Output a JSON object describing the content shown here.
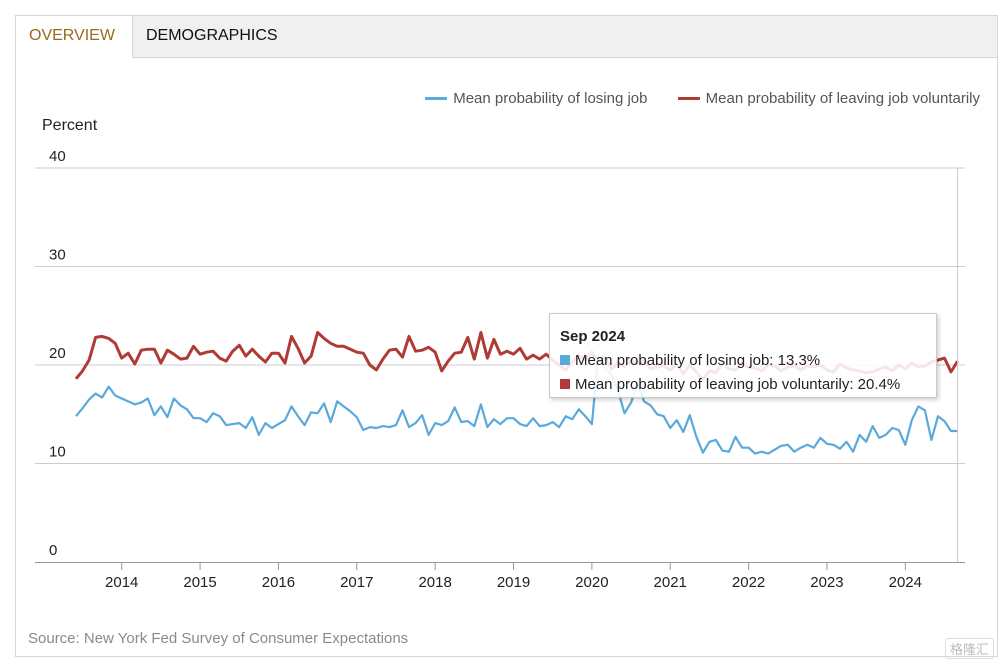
{
  "tabs": {
    "overview": "OVERVIEW",
    "demographics": "DEMOGRAPHICS"
  },
  "legend": {
    "losing": "Mean probability of losing job",
    "leaving": "Mean probability of leaving job voluntarily"
  },
  "axis": {
    "y_title": "Percent"
  },
  "tooltip": {
    "title": "Sep 2024",
    "losing_text": "Mean probability of losing job: 13.3%",
    "leaving_text": "Mean probability of leaving job voluntarily: 20.4%"
  },
  "source": "Source: New York Fed Survey of Consumer Expectations",
  "watermark": "格隆汇",
  "colors": {
    "losing": "#5aa9dc",
    "leaving": "#b03a36",
    "grid": "#cccccc",
    "active_tab": "#9a6a1c"
  },
  "chart_data": {
    "type": "line",
    "ylabel": "Percent",
    "ylim": [
      0,
      40
    ],
    "yticks": [
      0,
      10,
      20,
      30,
      40
    ],
    "xticks": [
      "2014",
      "2015",
      "2016",
      "2017",
      "2018",
      "2019",
      "2020",
      "2021",
      "2022",
      "2023",
      "2024"
    ],
    "x_start": "2013-06",
    "x_end": "2024-09",
    "grid": true,
    "legend_position": "top-right",
    "series": [
      {
        "name": "Mean probability of losing job",
        "values": [
          14.8,
          15.6,
          16.5,
          17.1,
          16.7,
          17.8,
          16.9,
          16.6,
          16.3,
          16.0,
          16.2,
          16.6,
          14.9,
          15.8,
          14.7,
          16.6,
          15.9,
          15.5,
          14.6,
          14.6,
          14.2,
          15.1,
          14.8,
          13.9,
          14.0,
          14.1,
          13.6,
          14.7,
          12.9,
          14.1,
          13.6,
          14.0,
          14.4,
          15.8,
          14.8,
          13.9,
          15.2,
          15.1,
          16.1,
          14.2,
          16.3,
          15.8,
          15.3,
          14.7,
          13.4,
          13.7,
          13.6,
          13.8,
          13.7,
          13.9,
          15.4,
          13.7,
          14.1,
          14.9,
          12.9,
          14.1,
          13.9,
          14.3,
          15.7,
          14.2,
          14.3,
          13.8,
          16.0,
          13.7,
          14.5,
          14.0,
          14.6,
          14.6,
          14.0,
          13.8,
          14.6,
          13.8,
          13.9,
          14.2,
          13.7,
          14.8,
          14.5,
          15.5,
          14.8,
          14.0,
          21.1,
          19.7,
          19.0,
          17.4,
          15.1,
          16.2,
          18.1,
          16.3,
          15.9,
          15.0,
          14.8,
          13.6,
          14.4,
          13.2,
          14.9,
          12.7,
          11.1,
          12.2,
          12.4,
          11.3,
          11.2,
          12.7,
          11.6,
          11.6,
          11.0,
          11.2,
          11.0,
          11.4,
          11.8,
          11.9,
          11.2,
          11.6,
          11.9,
          11.6,
          12.6,
          12.0,
          11.9,
          11.5,
          12.2,
          11.2,
          12.9,
          12.2,
          13.8,
          12.6,
          12.9,
          13.6,
          13.4,
          11.9,
          14.4,
          15.8,
          15.4,
          12.4,
          14.8,
          14.3,
          13.3,
          13.3
        ],
        "color": "#5aa9dc"
      },
      {
        "name": "Mean probability of leaving job voluntarily",
        "values": [
          18.6,
          19.4,
          20.5,
          22.8,
          22.9,
          22.7,
          22.2,
          20.7,
          21.2,
          20.1,
          21.5,
          21.6,
          21.6,
          20.2,
          21.5,
          21.1,
          20.6,
          20.7,
          21.9,
          21.1,
          21.3,
          21.4,
          20.7,
          20.4,
          21.4,
          22.0,
          20.9,
          21.6,
          20.9,
          20.3,
          21.2,
          21.2,
          20.2,
          22.9,
          21.7,
          20.2,
          20.9,
          23.3,
          22.7,
          22.2,
          21.9,
          21.9,
          21.6,
          21.3,
          21.2,
          20.0,
          19.5,
          20.6,
          21.5,
          21.6,
          20.8,
          22.9,
          21.4,
          21.5,
          21.8,
          21.3,
          19.4,
          20.4,
          21.2,
          21.3,
          22.8,
          20.6,
          23.3,
          20.7,
          22.6,
          21.1,
          21.4,
          21.1,
          21.7,
          20.6,
          21.0,
          20.6,
          21.1,
          20.5,
          20.0,
          19.5,
          20.3,
          21.0,
          20.5,
          21.3,
          20.3,
          20.8,
          19.6,
          20.2,
          19.8,
          20.5,
          20.1,
          20.5,
          19.6,
          19.8,
          19.9,
          19.5,
          20.1,
          19.1,
          20.0,
          19.3,
          18.5,
          19.4,
          19.2,
          20.2,
          19.6,
          19.5,
          20.2,
          19.8,
          19.7,
          19.4,
          20.0,
          19.9,
          19.4,
          19.8,
          19.9,
          19.5,
          19.9,
          19.8,
          20.0,
          19.5,
          19.3,
          20.1,
          19.7,
          19.5,
          19.4,
          19.2,
          19.3,
          19.6,
          19.8,
          19.4,
          20.0,
          19.6,
          20.2,
          19.8,
          19.9,
          20.3,
          20.5,
          20.7,
          19.3,
          20.4
        ],
        "color": "#b03a36"
      }
    ]
  }
}
